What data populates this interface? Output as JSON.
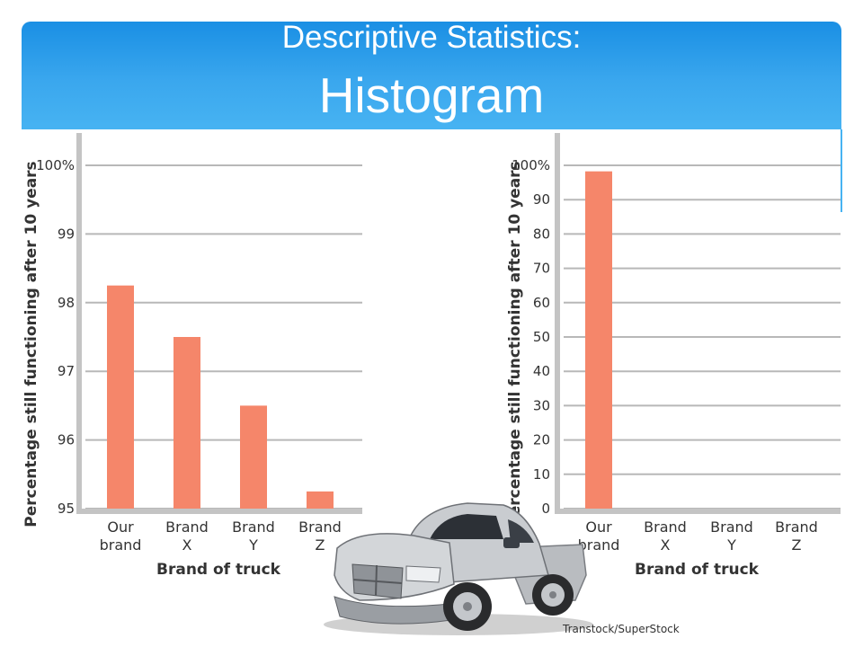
{
  "slide": {
    "title_line1": "Descriptive Statistics:",
    "title_line2": "Histogram",
    "photo_credit": "Transtock/SuperStock",
    "accent": "#3aa7ee",
    "picture_icon": "pickup-truck-photo"
  },
  "chart_data": [
    {
      "type": "bar",
      "categories": [
        "Our brand",
        "Brand X",
        "Brand Y",
        "Brand Z"
      ],
      "category_lines": [
        [
          "Our",
          "brand"
        ],
        [
          "Brand",
          "X"
        ],
        [
          "Brand",
          "Y"
        ],
        [
          "Brand",
          "Z"
        ]
      ],
      "values": [
        98.25,
        97.5,
        96.5,
        95.25
      ],
      "ylim": [
        95,
        100
      ],
      "yticks": [
        "95",
        "96",
        "97",
        "98",
        "99",
        "100%"
      ],
      "xlabel": "Brand of truck",
      "ylabel": "Percentage still functioning after 10 years",
      "bar_color": "#f5866a",
      "grid": true
    },
    {
      "type": "bar",
      "categories": [
        "Our brand",
        "Brand X",
        "Brand Y",
        "Brand Z"
      ],
      "category_lines": [
        [
          "Our",
          "brand"
        ],
        [
          "Brand",
          "X"
        ],
        [
          "Brand",
          "Y"
        ],
        [
          "Brand",
          "Z"
        ]
      ],
      "values": [
        98.25,
        0,
        0,
        0
      ],
      "ylim": [
        0,
        100
      ],
      "yticks": [
        "0",
        "10",
        "20",
        "30",
        "40",
        "50",
        "60",
        "70",
        "80",
        "90",
        "100%"
      ],
      "xlabel": "Brand of truck",
      "ylabel": "Percentage still functioning after 10 years",
      "bar_color": "#f5866a",
      "grid": true
    }
  ]
}
